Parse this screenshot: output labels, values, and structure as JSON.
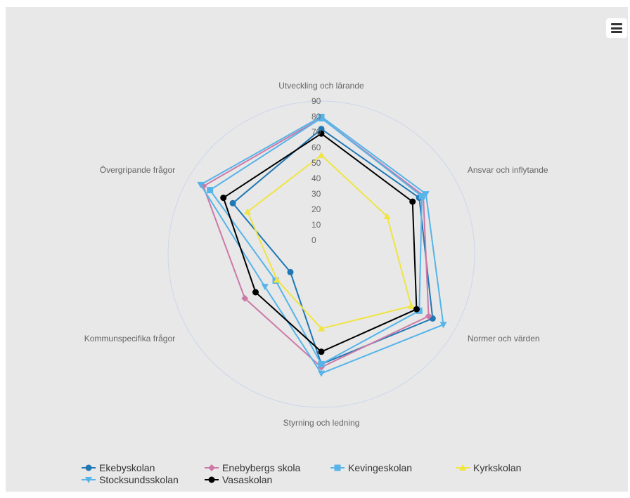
{
  "menu": {
    "icon": "hamburger-menu-icon"
  },
  "chart_data": {
    "type": "radar",
    "title": "",
    "axes": [
      "Utveckling och lärande",
      "Ansvar och inflytande",
      "Normer och värden",
      "Styrning och ledning",
      "Kommunspecifika frågor",
      "Övergripande frågor"
    ],
    "radial_ticks": [
      0,
      10,
      20,
      30,
      40,
      50,
      60,
      70,
      80,
      90
    ],
    "radial_range": [
      0,
      90
    ],
    "grid": true,
    "legend_position": "bottom",
    "series": [
      {
        "name": "Ekebyskolan",
        "color": "#1f77b4",
        "marker": "circle",
        "values": [
          72,
          64,
          74,
          62,
          14,
          57
        ]
      },
      {
        "name": "Enebybergs skola",
        "color": "#cc79a7",
        "marker": "diamond",
        "values": [
          79,
          67,
          71,
          64,
          48,
          79
        ]
      },
      {
        "name": "Kevingeskolan",
        "color": "#56b4e9",
        "marker": "square",
        "values": [
          79,
          66,
          64,
          62,
          25,
          74
        ]
      },
      {
        "name": "Kyrkskolan",
        "color": "#f0e442",
        "marker": "triangle",
        "values": [
          55,
          40,
          58,
          39,
          24,
          46
        ]
      },
      {
        "name": "Stocksundsskolan",
        "color": "#56b4e9",
        "marker": "triangle-down",
        "values": [
          80,
          69,
          82,
          68,
          33,
          81
        ]
      },
      {
        "name": "Vasaskolan",
        "color": "#000000",
        "marker": "circle",
        "values": [
          69,
          59,
          62,
          54,
          40,
          64
        ]
      }
    ]
  }
}
